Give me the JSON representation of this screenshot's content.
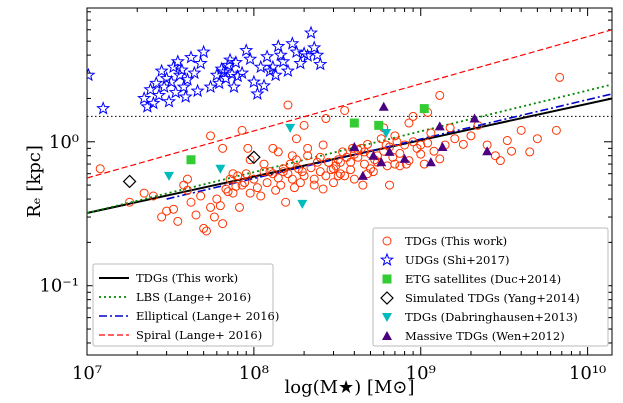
{
  "chart_data": {
    "type": "scatter",
    "xlabel": "log(M★) [M⊙]",
    "ylabel": "Rₑ [kpc]",
    "x_scale": "log",
    "y_scale": "log",
    "xlim": [
      10000000,
      14000000000
    ],
    "ylim": [
      0.033,
      8.5
    ],
    "x_ticks": [
      {
        "value": 10000000,
        "label": "10⁷"
      },
      {
        "value": 100000000,
        "label": "10⁸"
      },
      {
        "value": 1000000000,
        "label": "10⁹"
      },
      {
        "value": 10000000000,
        "label": "10¹⁰"
      }
    ],
    "y_ticks": [
      {
        "value": 0.1,
        "label": "10⁻¹"
      },
      {
        "value": 1,
        "label": "10⁰"
      }
    ],
    "hline": {
      "y": 1.5,
      "style": "dotted",
      "color": "#000000"
    },
    "lines": [
      {
        "name": "TDGs (This work)",
        "color": "#000000",
        "dash": "solid",
        "width": 2,
        "x": [
          10000000,
          14000000000
        ],
        "y": [
          0.32,
          2.0
        ]
      },
      {
        "name": "LBS (Lange+ 2016)",
        "color": "#008800",
        "dash": "dotted",
        "width": 1.8,
        "x": [
          10000000,
          14000000000
        ],
        "y": [
          0.32,
          2.5
        ]
      },
      {
        "name": "Elliptical (Lange+ 2016)",
        "color": "#0000cc",
        "dash": "dashdot",
        "width": 1.6,
        "x": [
          30000000,
          14000000000
        ],
        "y": [
          0.4,
          2.15
        ]
      },
      {
        "name": "Spiral (Lange+ 2016)",
        "color": "#ff0000",
        "dash": "dashed",
        "width": 1.2,
        "x": [
          10000000,
          14000000000
        ],
        "y": [
          0.56,
          6.0
        ]
      }
    ],
    "legend_lines": {
      "position": "lower-left",
      "entries": [
        "TDGs (This work)",
        "LBS (Lange+ 2016)",
        "Elliptical (Lange+ 2016)",
        "Spiral (Lange+ 2016)"
      ]
    },
    "legend_points": {
      "position": "lower-right",
      "entries": [
        {
          "name": "TDGs (This work)",
          "marker": "open-circle",
          "color": "#ff3300"
        },
        {
          "name": "UDGs (Shi+2017)",
          "marker": "open-star",
          "color": "#0000ff"
        },
        {
          "name": "ETG satellites (Duc+2014)",
          "marker": "square",
          "color": "#33cc33"
        },
        {
          "name": "Simulated TDGs (Yang+2014)",
          "marker": "open-diamond",
          "color": "#000000"
        },
        {
          "name": "TDGs (Dabringhausen+2013)",
          "marker": "triangle-down",
          "color": "#00bbbb"
        },
        {
          "name": "Massive TDGs (Wen+2012)",
          "marker": "triangle-up",
          "color": "#4b0082"
        }
      ]
    },
    "series": [
      {
        "name": "TDGs (This work)",
        "marker": "open-circle",
        "color": "#ff3300",
        "x": [
          12000000,
          18000000,
          22000000,
          25000000,
          28000000,
          30000000,
          33000000,
          35000000,
          38000000,
          40000000,
          42000000,
          45000000,
          48000000,
          50000000,
          52000000,
          55000000,
          58000000,
          60000000,
          63000000,
          65000000,
          68000000,
          70000000,
          72000000,
          75000000,
          78000000,
          80000000,
          82000000,
          85000000,
          88000000,
          90000000,
          92000000,
          95000000,
          100000000,
          105000000,
          110000000,
          115000000,
          120000000,
          125000000,
          130000000,
          135000000,
          140000000,
          145000000,
          150000000,
          155000000,
          160000000,
          165000000,
          170000000,
          175000000,
          180000000,
          185000000,
          190000000,
          195000000,
          200000000,
          210000000,
          220000000,
          230000000,
          240000000,
          250000000,
          260000000,
          270000000,
          280000000,
          290000000,
          300000000,
          310000000,
          320000000,
          330000000,
          340000000,
          350000000,
          360000000,
          380000000,
          400000000,
          420000000,
          440000000,
          460000000,
          480000000,
          500000000,
          520000000,
          550000000,
          580000000,
          600000000,
          630000000,
          650000000,
          680000000,
          700000000,
          750000000,
          800000000,
          850000000,
          900000000,
          950000000,
          1000000000,
          1050000000,
          1100000000,
          1150000000,
          1200000000,
          1300000000,
          1400000000,
          1500000000,
          1600000000,
          1800000000,
          2000000000,
          2200000000,
          2500000000,
          2800000000,
          3000000000,
          3300000000,
          3500000000,
          4000000000,
          4500000000,
          5000000000,
          6500000000,
          6800000000,
          40000000,
          55000000,
          65000000,
          75000000,
          85000000,
          95000000,
          115000000,
          140000000,
          160000000,
          180000000,
          200000000,
          230000000,
          270000000,
          300000000,
          350000000,
          400000000,
          450000000,
          500000000,
          600000000,
          700000000,
          900000000,
          1100000000,
          1300000000,
          150000000,
          250000000,
          320000000,
          380000000,
          420000000,
          480000000,
          550000000,
          650000000,
          750000000,
          850000000,
          1000000000,
          130000000,
          170000000,
          210000000,
          260000000,
          330000000,
          390000000,
          460000000,
          530000000,
          620000000,
          720000000,
          820000000
        ],
        "y": [
          0.65,
          0.38,
          0.44,
          0.42,
          0.3,
          0.33,
          0.34,
          0.28,
          0.5,
          0.46,
          0.38,
          0.31,
          0.42,
          0.25,
          0.24,
          0.35,
          0.3,
          0.4,
          0.36,
          0.27,
          0.47,
          0.45,
          0.55,
          0.44,
          0.49,
          0.58,
          0.35,
          0.5,
          0.52,
          0.6,
          0.9,
          0.44,
          0.55,
          0.48,
          0.42,
          0.7,
          0.52,
          0.62,
          0.6,
          0.46,
          0.56,
          0.5,
          0.65,
          0.38,
          0.6,
          0.7,
          0.55,
          0.48,
          0.75,
          0.65,
          0.52,
          0.62,
          0.58,
          0.8,
          0.66,
          0.55,
          0.72,
          0.62,
          0.47,
          0.58,
          0.72,
          0.64,
          0.52,
          0.68,
          0.75,
          0.6,
          0.85,
          0.58,
          0.78,
          0.64,
          0.55,
          0.78,
          0.9,
          0.7,
          0.96,
          0.82,
          0.62,
          0.72,
          1.05,
          0.86,
          0.68,
          0.92,
          0.78,
          1.1,
          0.83,
          0.95,
          0.74,
          1.0,
          0.9,
          0.82,
          0.7,
          0.98,
          1.15,
          0.86,
          0.76,
          0.95,
          1.25,
          1.05,
          0.96,
          1.1,
          1.3,
          0.95,
          0.8,
          0.74,
          1.02,
          0.86,
          1.2,
          0.85,
          1.05,
          1.2,
          2.8,
          0.55,
          1.1,
          0.9,
          0.6,
          1.2,
          0.75,
          0.62,
          0.85,
          1.8,
          1.05,
          1.3,
          0.5,
          1.45,
          0.65,
          1.65,
          0.82,
          0.5,
          0.65,
          1.25,
          0.7,
          1.5,
          1.6,
          2.1,
          0.62,
          0.78,
          0.58,
          0.72,
          0.88,
          0.6,
          0.8,
          0.5,
          0.68,
          1.35,
          0.95,
          0.9,
          0.8,
          0.9,
          0.95,
          0.72,
          0.9,
          0.85,
          0.75,
          0.95,
          1.0,
          0.7
        ]
      },
      {
        "name": "UDGs (Shi+2017)",
        "marker": "open-star",
        "color": "#0000ff",
        "x": [
          10200000,
          22000000,
          23000000,
          24000000,
          25000000,
          26000000,
          27000000,
          28000000,
          29000000,
          30000000,
          31000000,
          32000000,
          33000000,
          34000000,
          35000000,
          36000000,
          37000000,
          38000000,
          39000000,
          40000000,
          42000000,
          44000000,
          46000000,
          48000000,
          50000000,
          55000000,
          60000000,
          62000000,
          64000000,
          66000000,
          68000000,
          70000000,
          72000000,
          74000000,
          76000000,
          78000000,
          80000000,
          85000000,
          90000000,
          95000000,
          100000000,
          105000000,
          110000000,
          115000000,
          120000000,
          125000000,
          130000000,
          135000000,
          140000000,
          145000000,
          150000000,
          160000000,
          170000000,
          180000000,
          190000000,
          200000000,
          210000000,
          220000000,
          230000000,
          240000000,
          250000000,
          12500000
        ],
        "y": [
          2.9,
          2.0,
          1.75,
          2.3,
          1.85,
          2.55,
          2.1,
          3.1,
          2.4,
          2.75,
          1.9,
          2.6,
          3.3,
          2.2,
          3.6,
          2.9,
          3.15,
          2.4,
          2.05,
          2.7,
          3.85,
          3.0,
          2.25,
          3.5,
          4.2,
          2.4,
          2.9,
          2.55,
          3.2,
          3.05,
          2.75,
          3.4,
          3.7,
          2.95,
          2.4,
          3.55,
          2.85,
          3.0,
          4.3,
          3.75,
          2.6,
          2.15,
          3.3,
          2.45,
          3.9,
          3.1,
          3.3,
          2.9,
          4.6,
          4.0,
          3.6,
          3.1,
          4.8,
          4.2,
          3.5,
          4.1,
          3.95,
          5.7,
          4.5,
          4.0,
          3.45,
          1.7
        ]
      },
      {
        "name": "ETG satellites (Duc+2014)",
        "marker": "square",
        "color": "#33cc33",
        "x": [
          42000000,
          400000000,
          560000000,
          1050000000
        ],
        "y": [
          0.75,
          1.35,
          1.3,
          1.7
        ]
      },
      {
        "name": "Simulated TDGs (Yang+2014)",
        "marker": "open-diamond",
        "color": "#000000",
        "x": [
          18000000,
          100000000
        ],
        "y": [
          0.53,
          0.78
        ]
      },
      {
        "name": "TDGs (Dabringhausen+2013)",
        "marker": "triangle-down",
        "color": "#00bbbb",
        "x": [
          31000000,
          63000000,
          165000000,
          195000000,
          620000000
        ],
        "y": [
          0.58,
          0.65,
          1.25,
          0.37,
          1.15
        ]
      },
      {
        "name": "Massive TDGs (Wen+2012)",
        "marker": "triangle-up",
        "color": "#4b0082",
        "x": [
          400000000,
          450000000,
          520000000,
          580000000,
          600000000,
          650000000,
          800000000,
          1150000000,
          1300000000,
          1350000000,
          2100000000,
          2500000000
        ],
        "y": [
          0.92,
          0.58,
          0.8,
          0.72,
          1.75,
          0.85,
          0.76,
          0.72,
          1.28,
          0.92,
          1.45,
          0.86
        ]
      }
    ]
  }
}
